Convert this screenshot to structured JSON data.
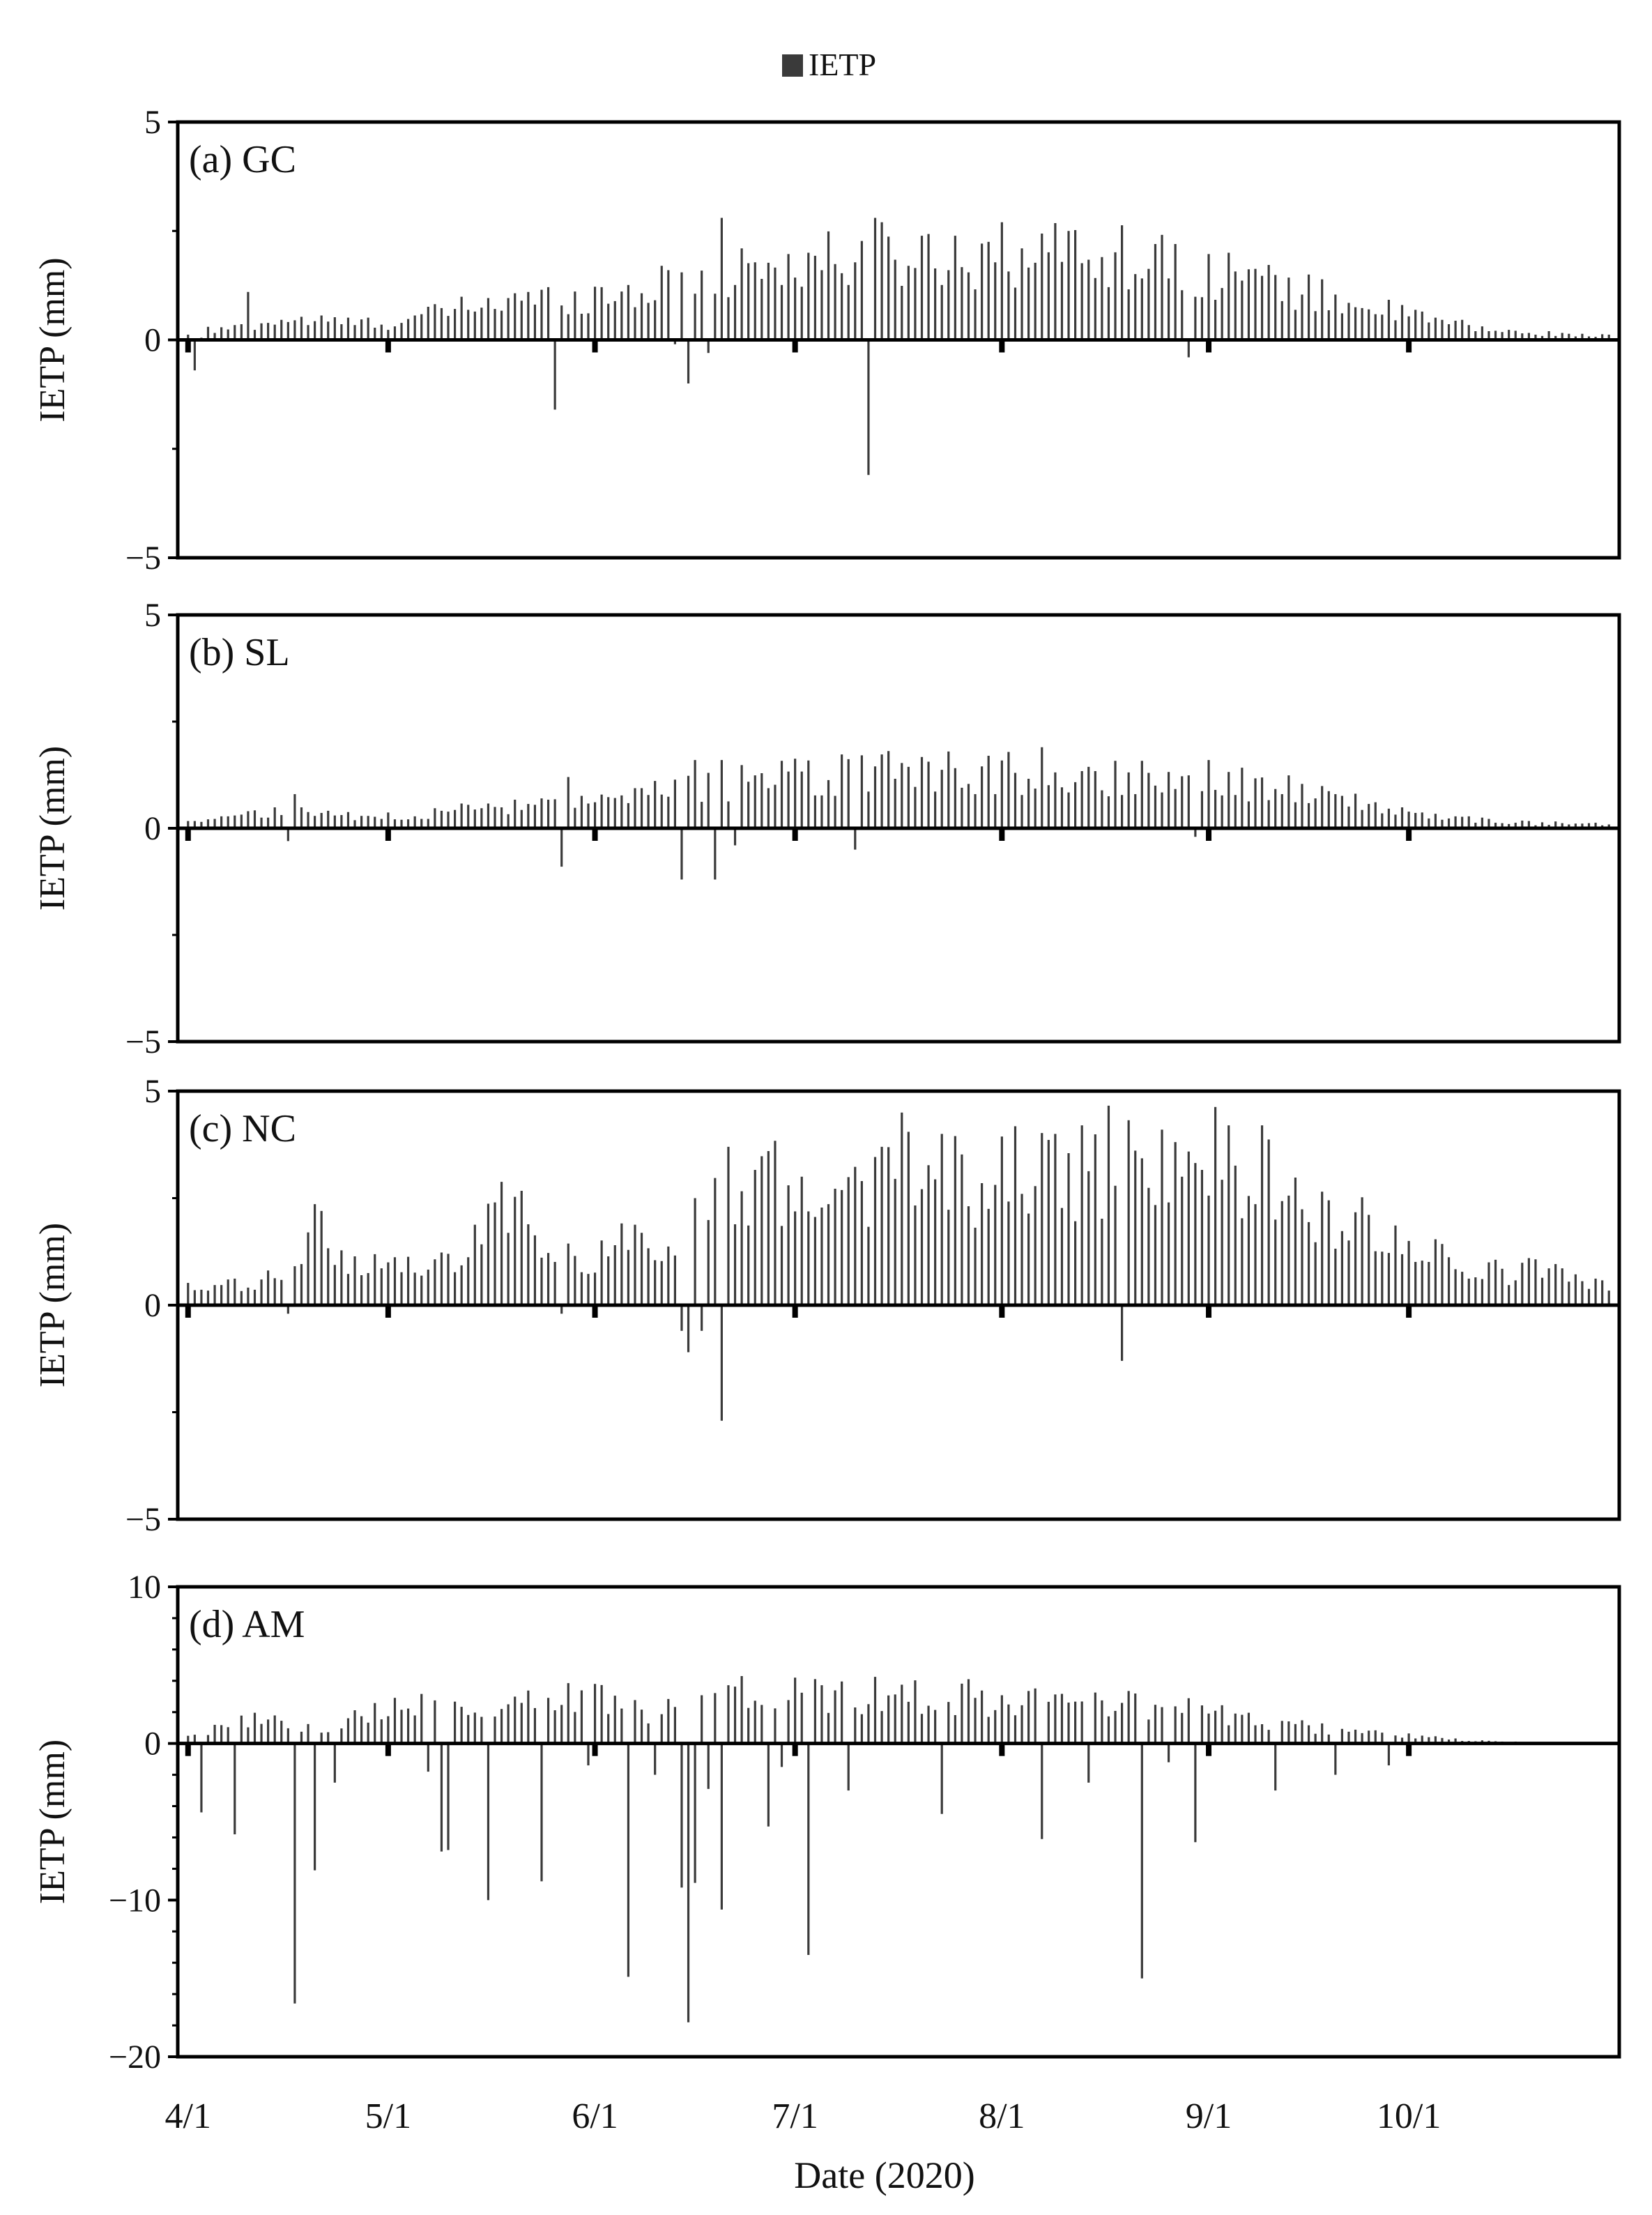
{
  "legend": {
    "label": "IETP",
    "swatch_color": "#3a3a3a"
  },
  "x_axis": {
    "label": "Date (2020)",
    "tick_labels": [
      "4/1",
      "5/1",
      "6/1",
      "7/1",
      "8/1",
      "9/1",
      "10/1"
    ]
  },
  "panels": [
    {
      "title": "(a) GC",
      "ylabel": "IETP (mm)",
      "y_tick_labels": [
        "5",
        "0",
        "−5"
      ]
    },
    {
      "title": "(b) SL",
      "ylabel": "IETP (mm)",
      "y_tick_labels": [
        "5",
        "0",
        "−5"
      ]
    },
    {
      "title": "(c) NC",
      "ylabel": "IETP (mm)",
      "y_tick_labels": [
        "5",
        "0",
        "−5"
      ]
    },
    {
      "title": "(d) AM",
      "ylabel": "IETP (mm)",
      "y_tick_labels": [
        "10",
        "0",
        "−10",
        "−20"
      ]
    }
  ],
  "chart_data": [
    {
      "type": "bar",
      "title": "(a) GC",
      "xlabel": "Date (2020)",
      "ylabel": "IETP (mm)",
      "ylim": [
        -5,
        5
      ],
      "x_range": [
        "2020-04-01",
        "2020-10-31"
      ],
      "series": [
        {
          "name": "IETP",
          "color": "#3a3a3a",
          "values": []
        }
      ],
      "daily_profile": [
        [
          "2020-04-01",
          0.1
        ],
        [
          "2020-04-15",
          0.5
        ],
        [
          "2020-05-01",
          0.4
        ],
        [
          "2020-05-15",
          0.9
        ],
        [
          "2020-06-01",
          1.1
        ],
        [
          "2020-06-15",
          1.4
        ],
        [
          "2020-07-01",
          1.9
        ],
        [
          "2020-07-15",
          2.1
        ],
        [
          "2020-08-01",
          2.1
        ],
        [
          "2020-08-15",
          2.2
        ],
        [
          "2020-09-01",
          1.7
        ],
        [
          "2020-09-15",
          1.2
        ],
        [
          "2020-10-01",
          0.6
        ],
        [
          "2020-10-15",
          0.2
        ],
        [
          "2020-10-31",
          0.1
        ]
      ],
      "spikes": [
        [
          "2020-04-03",
          0.05
        ],
        [
          "2020-04-04",
          0.3
        ],
        [
          "2020-04-10",
          1.1
        ],
        [
          "2020-05-21",
          0.9
        ],
        [
          "2020-06-12",
          1.6
        ],
        [
          "2020-06-20",
          2.8
        ],
        [
          "2020-06-23",
          2.1
        ],
        [
          "2020-07-13",
          2.8
        ],
        [
          "2020-08-01",
          2.7
        ],
        [
          "2020-08-11",
          2.5
        ],
        [
          "2020-08-27",
          2.2
        ],
        [
          "2020-09-04",
          2.0
        ]
      ],
      "negatives": [
        [
          "2020-04-02",
          -0.7
        ],
        [
          "2020-05-26",
          -1.6
        ],
        [
          "2020-06-13",
          -0.1
        ],
        [
          "2020-06-15",
          -1.0
        ],
        [
          "2020-06-18",
          -0.3
        ],
        [
          "2020-07-12",
          -3.1
        ],
        [
          "2020-08-29",
          -0.4
        ]
      ],
      "zero_days": []
    },
    {
      "type": "bar",
      "title": "(b) SL",
      "xlabel": "Date (2020)",
      "ylabel": "IETP (mm)",
      "ylim": [
        -5,
        5
      ],
      "x_range": [
        "2020-04-01",
        "2020-10-31"
      ],
      "series": [
        {
          "name": "IETP",
          "color": "#3a3a3a",
          "values": []
        }
      ],
      "daily_profile": [
        [
          "2020-04-01",
          0.2
        ],
        [
          "2020-04-15",
          0.4
        ],
        [
          "2020-05-01",
          0.3
        ],
        [
          "2020-05-15",
          0.5
        ],
        [
          "2020-06-01",
          0.6
        ],
        [
          "2020-06-15",
          1.0
        ],
        [
          "2020-07-01",
          1.3
        ],
        [
          "2020-07-15",
          1.4
        ],
        [
          "2020-08-01",
          1.4
        ],
        [
          "2020-08-15",
          1.3
        ],
        [
          "2020-09-01",
          1.3
        ],
        [
          "2020-09-15",
          0.9
        ],
        [
          "2020-10-01",
          0.4
        ],
        [
          "2020-10-15",
          0.15
        ],
        [
          "2020-10-31",
          0.1
        ]
      ],
      "spikes": [
        [
          "2020-04-17",
          0.8
        ],
        [
          "2020-05-28",
          1.2
        ],
        [
          "2020-06-16",
          1.6
        ],
        [
          "2020-06-20",
          1.6
        ],
        [
          "2020-07-24",
          1.8
        ],
        [
          "2020-08-07",
          1.9
        ],
        [
          "2020-09-01",
          1.6
        ]
      ],
      "negatives": [
        [
          "2020-04-16",
          -0.3
        ],
        [
          "2020-05-27",
          -0.9
        ],
        [
          "2020-06-14",
          -1.2
        ],
        [
          "2020-06-19",
          -1.2
        ],
        [
          "2020-06-22",
          -0.4
        ],
        [
          "2020-07-10",
          -0.5
        ],
        [
          "2020-08-30",
          -0.2
        ]
      ],
      "zero_days": []
    },
    {
      "type": "bar",
      "title": "(c) NC",
      "xlabel": "Date (2020)",
      "ylabel": "IETP (mm)",
      "ylim": [
        -5,
        5
      ],
      "x_range": [
        "2020-04-01",
        "2020-10-31"
      ],
      "series": [
        {
          "name": "IETP",
          "color": "#3a3a3a",
          "values": []
        }
      ],
      "daily_profile": [
        [
          "2020-04-01",
          0.4
        ],
        [
          "2020-04-10",
          0.5
        ],
        [
          "2020-04-16",
          0.8
        ],
        [
          "2020-04-20",
          2.1
        ],
        [
          "2020-04-24",
          1.2
        ],
        [
          "2020-05-05",
          0.9
        ],
        [
          "2020-05-12",
          1.0
        ],
        [
          "2020-05-15",
          2.3
        ],
        [
          "2020-05-21",
          2.2
        ],
        [
          "2020-05-24",
          1.0
        ],
        [
          "2020-06-01",
          1.3
        ],
        [
          "2020-06-15",
          2.0
        ],
        [
          "2020-06-25",
          3.0
        ],
        [
          "2020-07-01",
          3.1
        ],
        [
          "2020-07-15",
          3.2
        ],
        [
          "2020-08-01",
          3.3
        ],
        [
          "2020-08-15",
          3.6
        ],
        [
          "2020-08-25",
          3.8
        ],
        [
          "2020-09-05",
          3.5
        ],
        [
          "2020-09-15",
          2.6
        ],
        [
          "2020-10-01",
          1.6
        ],
        [
          "2020-10-10",
          0.8
        ],
        [
          "2020-10-20",
          0.9
        ],
        [
          "2020-10-31",
          0.5
        ]
      ],
      "spikes": [
        [
          "2020-04-21",
          2.2
        ],
        [
          "2020-05-17",
          2.4
        ],
        [
          "2020-06-16",
          2.5
        ],
        [
          "2020-06-21",
          3.7
        ],
        [
          "2020-06-27",
          3.6
        ],
        [
          "2020-07-17",
          4.5
        ],
        [
          "2020-07-23",
          4.0
        ],
        [
          "2020-08-09",
          4.0
        ],
        [
          "2020-08-13",
          4.2
        ],
        [
          "2020-08-25",
          4.1
        ],
        [
          "2020-09-04",
          4.2
        ],
        [
          "2020-09-09",
          4.2
        ]
      ],
      "negatives": [
        [
          "2020-04-16",
          -0.2
        ],
        [
          "2020-05-27",
          -0.2
        ],
        [
          "2020-06-14",
          -0.6
        ],
        [
          "2020-06-15",
          -1.1
        ],
        [
          "2020-06-17",
          -0.6
        ],
        [
          "2020-06-20",
          -2.7
        ],
        [
          "2020-08-19",
          -1.3
        ]
      ],
      "zero_days": []
    },
    {
      "type": "bar",
      "title": "(d) AM",
      "xlabel": "Date (2020)",
      "ylabel": "IETP (mm)",
      "ylim": [
        -20,
        10
      ],
      "x_range": [
        "2020-04-01",
        "2020-10-31"
      ],
      "series": [
        {
          "name": "IETP",
          "color": "#3a3a3a",
          "values": []
        }
      ],
      "daily_profile": [
        [
          "2020-04-01",
          0.5
        ],
        [
          "2020-04-10",
          1.5
        ],
        [
          "2020-04-15",
          2.0
        ],
        [
          "2020-04-20",
          0.8
        ],
        [
          "2020-05-01",
          2.5
        ],
        [
          "2020-05-08",
          2.8
        ],
        [
          "2020-05-15",
          2.0
        ],
        [
          "2020-05-20",
          3.0
        ],
        [
          "2020-06-01",
          3.0
        ],
        [
          "2020-06-10",
          2.0
        ],
        [
          "2020-06-20",
          3.0
        ],
        [
          "2020-07-01",
          3.2
        ],
        [
          "2020-07-15",
          3.4
        ],
        [
          "2020-08-01",
          3.0
        ],
        [
          "2020-08-15",
          2.8
        ],
        [
          "2020-08-25",
          2.5
        ],
        [
          "2020-09-01",
          2.2
        ],
        [
          "2020-09-10",
          1.3
        ],
        [
          "2020-09-20",
          1.0
        ],
        [
          "2020-10-01",
          0.5
        ],
        [
          "2020-10-10",
          0.2
        ],
        [
          "2020-10-20",
          0.05
        ],
        [
          "2020-10-31",
          0.0
        ]
      ],
      "spikes": [
        [
          "2020-06-01",
          3.8
        ],
        [
          "2020-06-23",
          4.3
        ],
        [
          "2020-07-01",
          4.2
        ],
        [
          "2020-07-27",
          4.1
        ]
      ],
      "negatives": [
        [
          "2020-04-03",
          -4.4
        ],
        [
          "2020-04-08",
          -5.8
        ],
        [
          "2020-04-17",
          -16.6
        ],
        [
          "2020-04-20",
          -8.1
        ],
        [
          "2020-04-23",
          -2.5
        ],
        [
          "2020-05-07",
          -1.8
        ],
        [
          "2020-05-09",
          -6.9
        ],
        [
          "2020-05-10",
          -6.8
        ],
        [
          "2020-05-16",
          -10.0
        ],
        [
          "2020-05-24",
          -8.8
        ],
        [
          "2020-05-31",
          -1.4
        ],
        [
          "2020-06-06",
          -14.9
        ],
        [
          "2020-06-10",
          -2.0
        ],
        [
          "2020-06-14",
          -9.2
        ],
        [
          "2020-06-15",
          -17.8
        ],
        [
          "2020-06-16",
          -8.9
        ],
        [
          "2020-06-18",
          -2.9
        ],
        [
          "2020-06-20",
          -10.6
        ],
        [
          "2020-06-27",
          -5.3
        ],
        [
          "2020-06-29",
          -1.5
        ],
        [
          "2020-07-03",
          -13.5
        ],
        [
          "2020-07-09",
          -3.0
        ],
        [
          "2020-07-23",
          -4.5
        ],
        [
          "2020-08-07",
          -6.1
        ],
        [
          "2020-08-14",
          -2.5
        ],
        [
          "2020-08-22",
          -15.0
        ],
        [
          "2020-08-26",
          -1.2
        ],
        [
          "2020-08-30",
          -6.3
        ],
        [
          "2020-09-11",
          -3.0
        ],
        [
          "2020-09-20",
          -2.0
        ],
        [
          "2020-09-28",
          -1.4
        ]
      ],
      "zero_days": []
    }
  ]
}
